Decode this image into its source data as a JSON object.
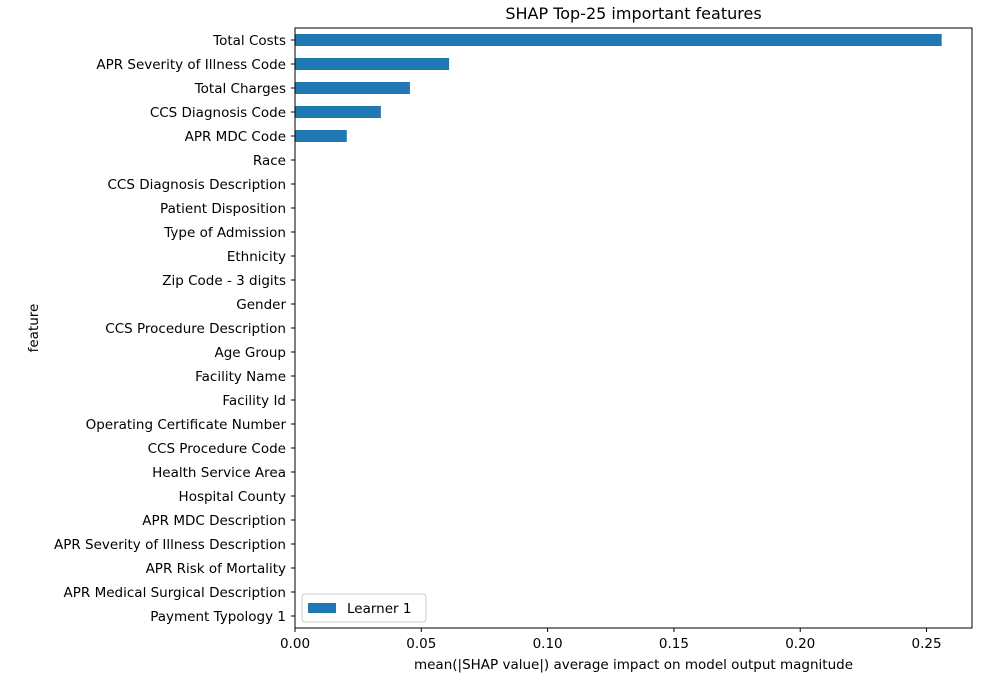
{
  "chart_data": {
    "type": "bar",
    "orientation": "horizontal",
    "title": "SHAP Top-25 important features",
    "xlabel": "mean(|SHAP value|) average impact on model output magnitude",
    "ylabel": "feature",
    "xlim": [
      0,
      0.268
    ],
    "xticks": [
      0.0,
      0.05,
      0.1,
      0.15,
      0.2,
      0.25
    ],
    "xtick_labels": [
      "0.00",
      "0.05",
      "0.10",
      "0.15",
      "0.20",
      "0.25"
    ],
    "grid": false,
    "legend_position": "bottom-left",
    "bar_color": "#1f77b4",
    "categories": [
      "Total Costs",
      "APR Severity of Illness Code",
      "Total Charges",
      "CCS Diagnosis Code",
      "APR MDC Code",
      "Race",
      "CCS Diagnosis Description",
      "Patient Disposition",
      "Type of Admission",
      "Ethnicity",
      "Zip Code - 3 digits",
      "Gender",
      "CCS Procedure Description",
      "Age Group",
      "Facility Name",
      "Facility Id",
      "Operating Certificate Number",
      "CCS Procedure Code",
      "Health Service Area",
      "Hospital County",
      "APR MDC Description",
      "APR Severity of Illness Description",
      "APR Risk of Mortality",
      "APR Medical Surgical Description",
      "Payment Typology 1"
    ],
    "series": [
      {
        "name": "Learner 1",
        "values": [
          0.256,
          0.061,
          0.0455,
          0.034,
          0.0205,
          0,
          0,
          0,
          0,
          0,
          0,
          0,
          0,
          0,
          0,
          0,
          0,
          0,
          0,
          0,
          0,
          0,
          0,
          0,
          0
        ]
      }
    ]
  }
}
